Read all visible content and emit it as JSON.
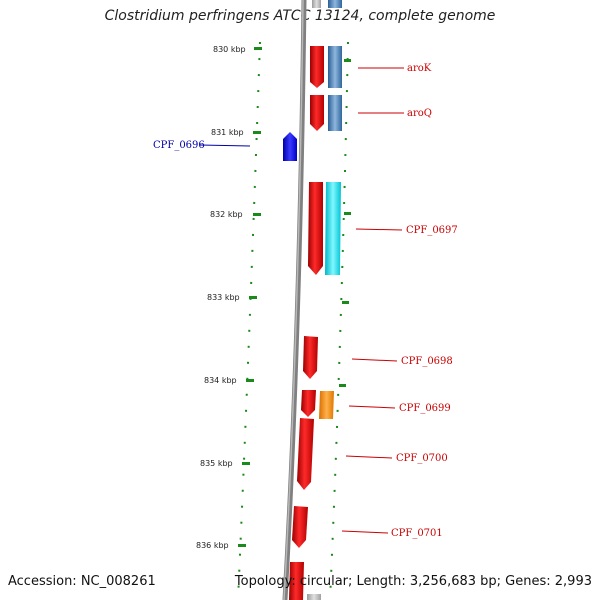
{
  "title": "Clostridium perfringens ATCC 13124, complete genome",
  "footer": {
    "accession": "Accession: NC_008261",
    "summary": "Topology: circular; Length: 3,256,683 bp; Genes: 2,993"
  },
  "ticks": [
    "830 kbp",
    "831 kbp",
    "832 kbp",
    "833 kbp",
    "834 kbp",
    "835 kbp",
    "836 kbp"
  ],
  "genes": [
    {
      "label": "aroK",
      "strand": "forward",
      "color": "#cc0000"
    },
    {
      "label": "aroQ",
      "strand": "forward",
      "color": "#cc0000"
    },
    {
      "label": "CPF_0696",
      "strand": "reverse",
      "color": "#0000aa"
    },
    {
      "label": "CPF_0697",
      "strand": "forward",
      "color": "#cc0000"
    },
    {
      "label": "CPF_0698",
      "strand": "forward",
      "color": "#cc0000"
    },
    {
      "label": "CPF_0699",
      "strand": "forward",
      "color": "#cc0000"
    },
    {
      "label": "CPF_0700",
      "strand": "forward",
      "color": "#cc0000"
    },
    {
      "label": "CPF_0701",
      "strand": "forward",
      "color": "#cc0000"
    }
  ],
  "colors": {
    "backbone": "#7a7a7a",
    "forward_cds": "#e00000",
    "reverse_cds": "#0000ee",
    "steel_blue_feature": "#4f83b8",
    "cyan_feature": "#00e5ee",
    "orange_feature": "#ff8c00",
    "tick": "#1a8a1a"
  }
}
